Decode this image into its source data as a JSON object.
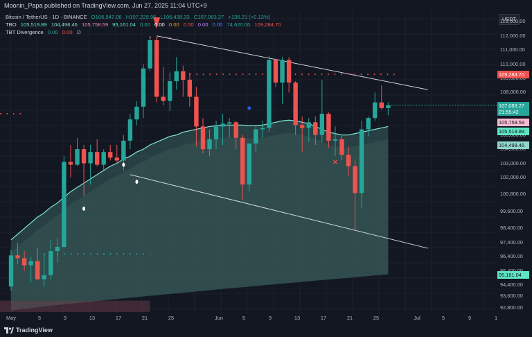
{
  "header": {
    "published_text": "Moonin_Papa published on TradingView.com, Jun 27, 2025 11:04 UTC+9"
  },
  "legend": {
    "symbol_line": {
      "symbol": "Bitcoin / TetherUS · 1D · BINANCE",
      "o": "O106,947.06",
      "h": "H107,229.95",
      "l": "L106,438.33",
      "c": "C107,083.27",
      "change": "+136.21 (+0.13%)"
    },
    "tbo_line": {
      "name": "TBO",
      "v1": "105,519.89",
      "v2": "104,498.46",
      "v3": "105,758.59",
      "v4": "95,161.04",
      "v5": "0.00",
      "v6": "0.00",
      "v7": "0.00",
      "v8": "0.00",
      "v9": "0.00",
      "v10": "0.00",
      "v11": "74,620.00",
      "v12": "109,284.70"
    },
    "divergence_line": {
      "name": "TBT Divergence",
      "v1": "0.00",
      "v2": "0.00",
      "v3": "∅"
    }
  },
  "price_axis": {
    "currency_button": "USDT",
    "ticks": [
      "113,000.00",
      "112,000.00",
      "111,000.00",
      "110,000.00",
      "109,000.00",
      "108,000.00",
      "107,000.00",
      "106,000.00",
      "105,000.00",
      "104,000.00",
      "103,000.00",
      "102,000.00",
      "100,800.00",
      "99,600.00",
      "98,400.00",
      "97,400.00",
      "96,400.00",
      "95,400.00",
      "94,400.00",
      "93,600.00",
      "92,800.00"
    ],
    "badges": {
      "red_top": "109,284.70",
      "current_price": "107,083.27",
      "countdown": "21:55:42",
      "pink": "105,758.59",
      "teal1": "105,519.89",
      "teal2": "104,498.46",
      "teal3": "95,161.04"
    }
  },
  "time_axis": {
    "labels": [
      "May",
      "5",
      "9",
      "13",
      "17",
      "21",
      "25",
      "Jun",
      "5",
      "9",
      "13",
      "17",
      "21",
      "25",
      "Jul",
      "5",
      "9",
      "1"
    ]
  },
  "footer": {
    "brand": "TradingView"
  },
  "chart_data": {
    "type": "candlestick",
    "symbol": "Bitcoin / TetherUS",
    "interval": "1D",
    "exchange": "BINANCE",
    "y_range": [
      92400,
      113700
    ],
    "candles": [
      {
        "o": 94300,
        "h": 96900,
        "l": 94000,
        "c": 96500
      },
      {
        "o": 96500,
        "h": 97400,
        "l": 95900,
        "c": 96300
      },
      {
        "o": 96300,
        "h": 96800,
        "l": 95400,
        "c": 95800
      },
      {
        "o": 95800,
        "h": 96400,
        "l": 94600,
        "c": 96100
      },
      {
        "o": 96100,
        "h": 97000,
        "l": 94800,
        "c": 94800
      },
      {
        "o": 94800,
        "h": 96600,
        "l": 94300,
        "c": 95100
      },
      {
        "o": 95100,
        "h": 97600,
        "l": 94800,
        "c": 96800
      },
      {
        "o": 96800,
        "h": 97700,
        "l": 96000,
        "c": 97100
      },
      {
        "o": 97100,
        "h": 103500,
        "l": 97000,
        "c": 103100
      },
      {
        "o": 103100,
        "h": 104300,
        "l": 102000,
        "c": 102900
      },
      {
        "o": 102900,
        "h": 104800,
        "l": 102800,
        "c": 104000
      },
      {
        "o": 104000,
        "h": 104300,
        "l": 100700,
        "c": 103000
      },
      {
        "o": 103000,
        "h": 104300,
        "l": 101500,
        "c": 103800
      },
      {
        "o": 103800,
        "h": 104700,
        "l": 102800,
        "c": 102900
      },
      {
        "o": 102900,
        "h": 104000,
        "l": 102500,
        "c": 103800
      },
      {
        "o": 103800,
        "h": 104300,
        "l": 103200,
        "c": 103400
      },
      {
        "o": 103400,
        "h": 104300,
        "l": 103000,
        "c": 103200
      },
      {
        "o": 103200,
        "h": 105000,
        "l": 102500,
        "c": 104600
      },
      {
        "o": 104600,
        "h": 106500,
        "l": 104000,
        "c": 106100
      },
      {
        "o": 106100,
        "h": 107400,
        "l": 105700,
        "c": 107000
      },
      {
        "o": 107000,
        "h": 110000,
        "l": 106200,
        "c": 109700
      },
      {
        "o": 109700,
        "h": 112000,
        "l": 109500,
        "c": 111700
      },
      {
        "o": 111700,
        "h": 111900,
        "l": 107300,
        "c": 107700
      },
      {
        "o": 107700,
        "h": 109800,
        "l": 107100,
        "c": 107400
      },
      {
        "o": 107400,
        "h": 109400,
        "l": 106700,
        "c": 108800
      },
      {
        "o": 108800,
        "h": 110500,
        "l": 108200,
        "c": 109500
      },
      {
        "o": 109500,
        "h": 109900,
        "l": 107700,
        "c": 108900
      },
      {
        "o": 108900,
        "h": 109400,
        "l": 107000,
        "c": 107700
      },
      {
        "o": 107700,
        "h": 108400,
        "l": 104200,
        "c": 105600
      },
      {
        "o": 105600,
        "h": 106200,
        "l": 103700,
        "c": 104000
      },
      {
        "o": 104000,
        "h": 105400,
        "l": 103500,
        "c": 104700
      },
      {
        "o": 104700,
        "h": 106000,
        "l": 104000,
        "c": 105600
      },
      {
        "o": 105600,
        "h": 106500,
        "l": 104300,
        "c": 105800
      },
      {
        "o": 105800,
        "h": 106200,
        "l": 104800,
        "c": 105900
      },
      {
        "o": 105900,
        "h": 106000,
        "l": 104000,
        "c": 104800
      },
      {
        "o": 104800,
        "h": 105000,
        "l": 100400,
        "c": 101500
      },
      {
        "o": 101500,
        "h": 104300,
        "l": 101000,
        "c": 104400
      },
      {
        "o": 104400,
        "h": 105600,
        "l": 103800,
        "c": 105400
      },
      {
        "o": 105400,
        "h": 106000,
        "l": 104800,
        "c": 105500
      },
      {
        "o": 105500,
        "h": 110600,
        "l": 105200,
        "c": 110300
      },
      {
        "o": 110300,
        "h": 110400,
        "l": 108400,
        "c": 108700
      },
      {
        "o": 108700,
        "h": 110500,
        "l": 107200,
        "c": 110300
      },
      {
        "o": 110300,
        "h": 110500,
        "l": 108000,
        "c": 108700
      },
      {
        "o": 108700,
        "h": 108800,
        "l": 105000,
        "c": 105700
      },
      {
        "o": 105700,
        "h": 106300,
        "l": 103800,
        "c": 105500
      },
      {
        "o": 105500,
        "h": 106200,
        "l": 104500,
        "c": 105900
      },
      {
        "o": 105900,
        "h": 106300,
        "l": 104300,
        "c": 105000
      },
      {
        "o": 105000,
        "h": 108900,
        "l": 104500,
        "c": 106500
      },
      {
        "o": 106500,
        "h": 106600,
        "l": 104100,
        "c": 104600
      },
      {
        "o": 104600,
        "h": 105600,
        "l": 103500,
        "c": 104700
      },
      {
        "o": 104700,
        "h": 105000,
        "l": 103200,
        "c": 103600
      },
      {
        "o": 103600,
        "h": 104200,
        "l": 102100,
        "c": 102800
      },
      {
        "o": 102800,
        "h": 103300,
        "l": 98300,
        "c": 100900
      },
      {
        "o": 100900,
        "h": 106000,
        "l": 99800,
        "c": 105400
      },
      {
        "o": 105400,
        "h": 106300,
        "l": 104900,
        "c": 106200
      },
      {
        "o": 106200,
        "h": 108000,
        "l": 106000,
        "c": 107300
      },
      {
        "o": 107300,
        "h": 108500,
        "l": 106800,
        "c": 106900
      },
      {
        "o": 106900,
        "h": 107300,
        "l": 106400,
        "c": 107100
      }
    ],
    "fast_line": [
      97600,
      98000,
      98400,
      98800,
      99200,
      99500,
      99900,
      100200,
      100600,
      101000,
      101300,
      101600,
      101900,
      102200,
      102500,
      102800,
      103000,
      103300,
      103500,
      103800,
      104000,
      104300,
      104500,
      104700,
      104900,
      105000,
      105200,
      105300,
      105400,
      105500,
      105600,
      105650,
      105700,
      105700,
      105700,
      105700,
      105650,
      105650,
      105700,
      105800,
      105900,
      106000,
      106050,
      106000,
      105900,
      105800,
      105600,
      105400,
      105200,
      105100,
      105000,
      105000,
      105100,
      105200,
      105300,
      105400,
      105500,
      105600
    ],
    "slow_line_end": 95161.04,
    "levels": {
      "upper_dotted_red": 109284.7,
      "left_dotted_red": 106500,
      "green_dotted": 96600
    },
    "channel": {
      "upper": {
        "from": {
          "i": 22,
          "v": 112000
        },
        "to": {
          "i": 63,
          "v": 108200
        }
      },
      "lower": {
        "from": {
          "i": 18,
          "v": 102200
        },
        "to": {
          "i": 63,
          "v": 97000
        }
      }
    }
  }
}
